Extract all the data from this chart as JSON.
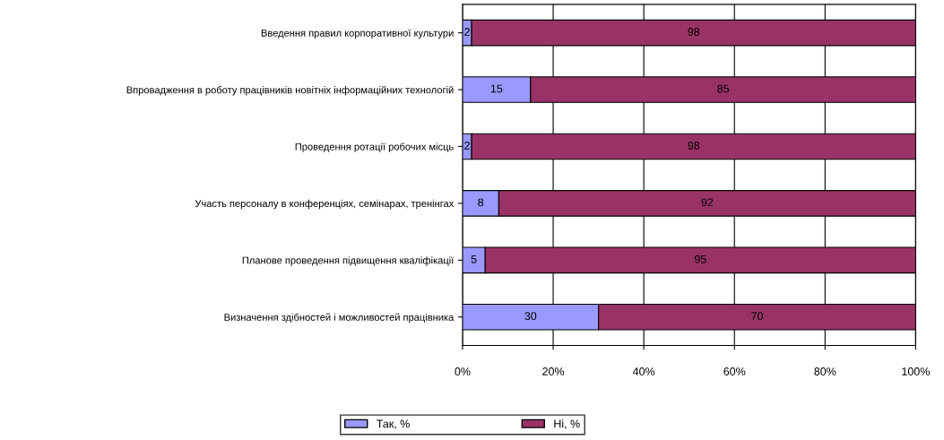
{
  "chart_data": {
    "type": "bar",
    "orientation": "horizontal",
    "stacked": true,
    "categories": [
      "Введення правил корпоративної культури",
      "Впровадження в роботу працівників новітніх інформаційних технологій",
      "Проведення ротації робочих місць",
      "Участь персоналу в конференціях, семінарах, тренінгах",
      "Планове проведення підвищення кваліфікації",
      "Визначення здібностей і можливостей працівника"
    ],
    "series": [
      {
        "name": "Так, %",
        "color": "#9999ff",
        "values": [
          2,
          15,
          2,
          8,
          5,
          30
        ]
      },
      {
        "name": "Ні, %",
        "color": "#993366",
        "values": [
          98,
          85,
          98,
          92,
          95,
          70
        ]
      }
    ],
    "xlim": [
      0,
      100
    ],
    "xticks": [
      {
        "value": 0,
        "label": "0%"
      },
      {
        "value": 20,
        "label": "20%"
      },
      {
        "value": 40,
        "label": "40%"
      },
      {
        "value": 60,
        "label": "60%"
      },
      {
        "value": 80,
        "label": "80%"
      },
      {
        "value": 100,
        "label": "100%"
      }
    ],
    "grid": "x",
    "legend": "bottom",
    "data_labels": true
  }
}
